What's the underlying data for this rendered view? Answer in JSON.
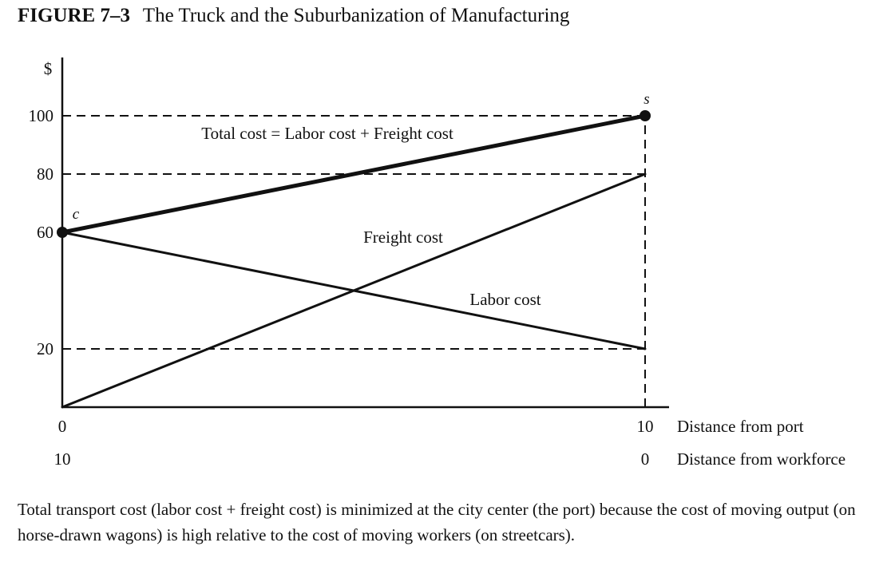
{
  "figure": {
    "number": "FIGURE 7–3",
    "title": "The Truck and the Suburbanization of Manufacturing"
  },
  "chart_data": {
    "type": "line",
    "ylabel": "$",
    "xlim": [
      0,
      10
    ],
    "ylim": [
      0,
      100
    ],
    "y_ticks": [
      {
        "value": 100,
        "label": "100"
      },
      {
        "value": 80,
        "label": "80"
      },
      {
        "value": 60,
        "label": "60"
      },
      {
        "value": 20,
        "label": "20"
      }
    ],
    "x_axis_rows": [
      {
        "name": "Distance from port",
        "left_label": "0",
        "right_label": "10"
      },
      {
        "name": "Distance from workforce",
        "left_label": "10",
        "right_label": "0"
      }
    ],
    "series": [
      {
        "name": "Total cost = Labor cost + Freight cost",
        "x": [
          0,
          10
        ],
        "y": [
          60,
          100
        ],
        "style": "thick"
      },
      {
        "name": "Freight cost",
        "x": [
          0,
          10
        ],
        "y": [
          0,
          80
        ],
        "style": "normal"
      },
      {
        "name": "Labor cost",
        "x": [
          0,
          10
        ],
        "y": [
          60,
          20
        ],
        "style": "normal"
      }
    ],
    "points": [
      {
        "label": "c",
        "x": 0,
        "y": 60
      },
      {
        "label": "s",
        "x": 10,
        "y": 100
      }
    ],
    "reference_lines": [
      {
        "kind": "horizontal",
        "y": 100,
        "x_to": 10
      },
      {
        "kind": "horizontal",
        "y": 80,
        "x_to": 10
      },
      {
        "kind": "horizontal",
        "y": 20,
        "x_to": 10
      },
      {
        "kind": "vertical",
        "x": 10,
        "y_to": 100
      }
    ],
    "grid": false
  },
  "caption": "Total transport cost (labor cost + freight cost) is minimized at the city center (the port) because the cost of moving output (on horse-drawn wagons) is high relative to the cost of moving workers (on streetcars)."
}
